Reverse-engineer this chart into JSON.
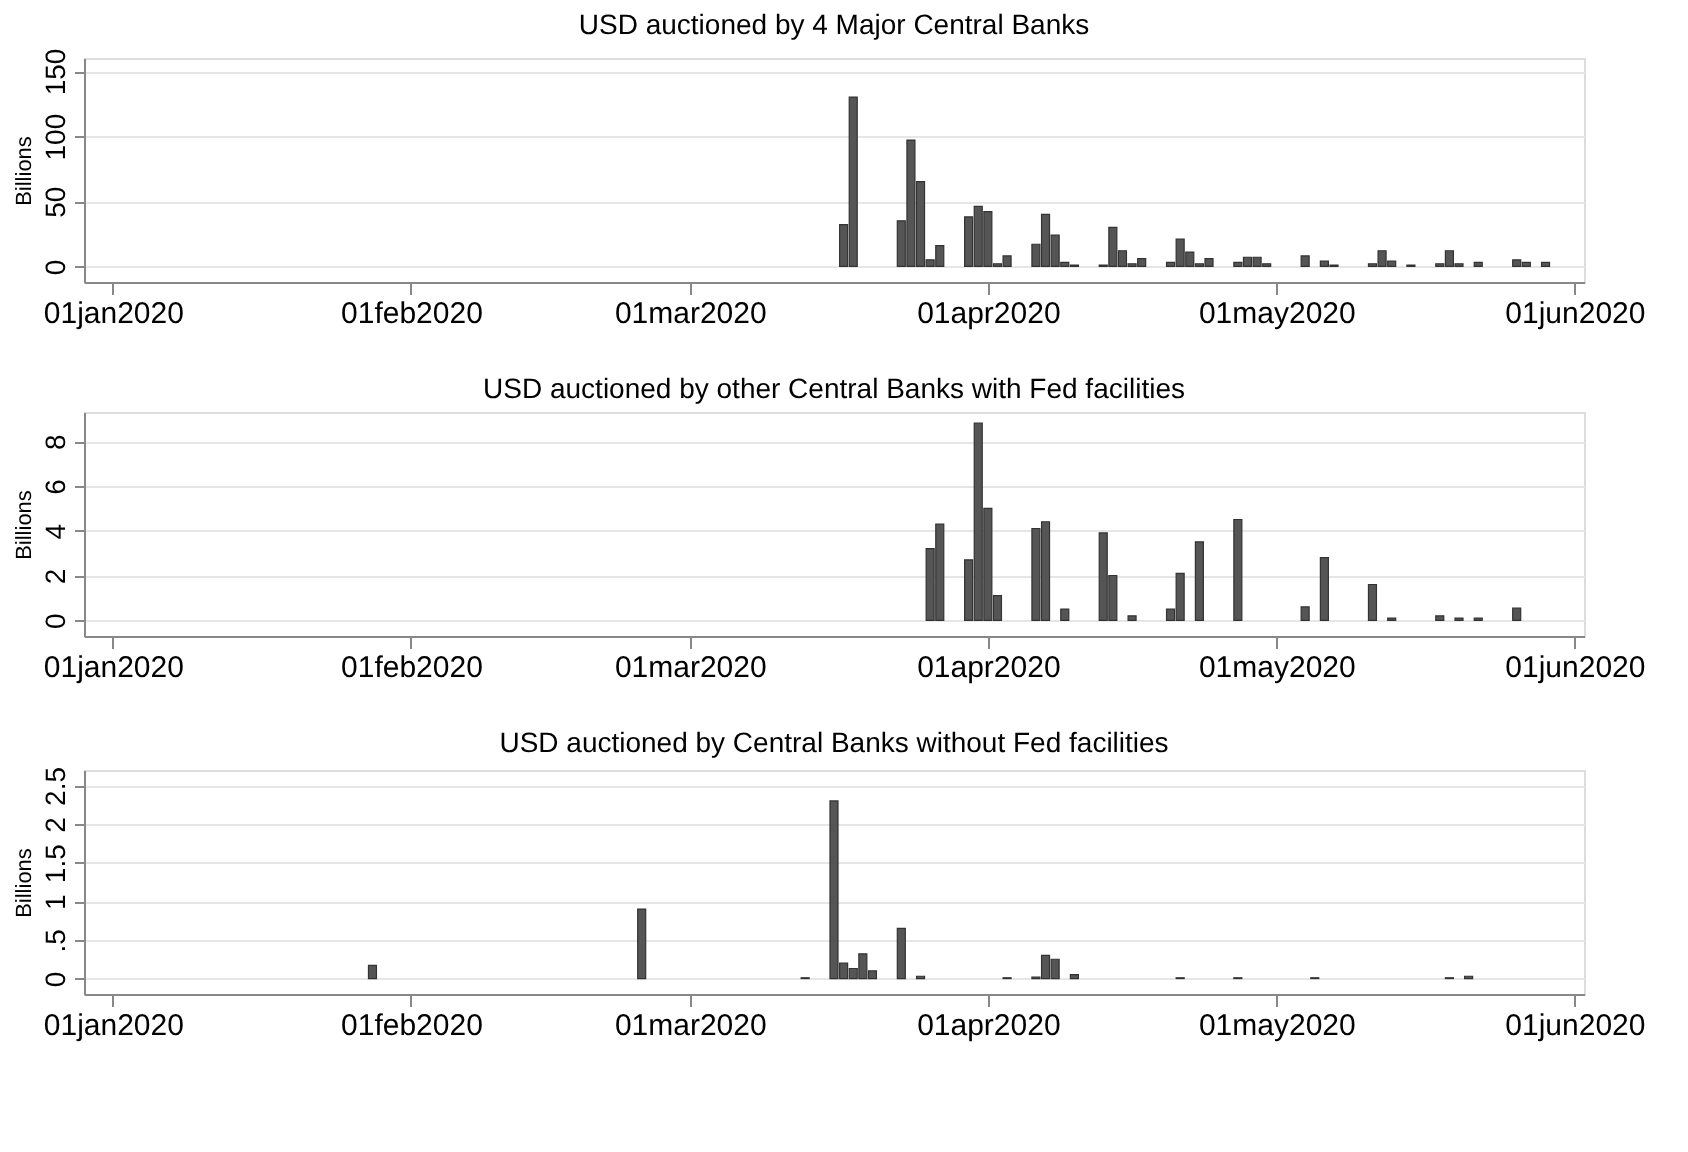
{
  "chart_data": [
    {
      "type": "bar",
      "title": "USD auctioned by 4 Major Central Banks",
      "ylabel": "Billions",
      "x": [
        "2020-03-17",
        "2020-03-18",
        "2020-03-23",
        "2020-03-24",
        "2020-03-25",
        "2020-03-26",
        "2020-03-27",
        "2020-03-30",
        "2020-03-31",
        "2020-04-01",
        "2020-04-02",
        "2020-04-03",
        "2020-04-06",
        "2020-04-07",
        "2020-04-08",
        "2020-04-09",
        "2020-04-10",
        "2020-04-13",
        "2020-04-14",
        "2020-04-15",
        "2020-04-16",
        "2020-04-17",
        "2020-04-20",
        "2020-04-21",
        "2020-04-22",
        "2020-04-23",
        "2020-04-24",
        "2020-04-27",
        "2020-04-28",
        "2020-04-29",
        "2020-04-30",
        "2020-05-04",
        "2020-05-06",
        "2020-05-07",
        "2020-05-11",
        "2020-05-12",
        "2020-05-13",
        "2020-05-15",
        "2020-05-18",
        "2020-05-19",
        "2020-05-20",
        "2020-05-22",
        "2020-05-26",
        "2020-05-27",
        "2020-05-29"
      ],
      "values": [
        32,
        130,
        35,
        97,
        65,
        5,
        16,
        38,
        46,
        42,
        2,
        8,
        17,
        40,
        24,
        3,
        1,
        1,
        30,
        12,
        2,
        6,
        3,
        21,
        11,
        2,
        6,
        3,
        7,
        7,
        2,
        8,
        4,
        1,
        2,
        12,
        4,
        1,
        2,
        12,
        2,
        3,
        5,
        3,
        3
      ],
      "color": "#555555",
      "xlim": [
        "2019-12-29",
        "2020-06-02"
      ],
      "xticks": [
        {
          "value": "2020-01-01",
          "label": "01jan2020"
        },
        {
          "value": "2020-02-01",
          "label": "01feb2020"
        },
        {
          "value": "2020-03-01",
          "label": "01mar2020"
        },
        {
          "value": "2020-04-01",
          "label": "01apr2020"
        },
        {
          "value": "2020-05-01",
          "label": "01may2020"
        },
        {
          "value": "2020-06-01",
          "label": "01jun2020"
        }
      ],
      "ylim": [
        -12,
        160
      ],
      "yticks": [
        0,
        50,
        100,
        150
      ],
      "grid": "y"
    },
    {
      "type": "bar",
      "title": "USD auctioned by other Central Banks with Fed facilities",
      "ylabel": "Billions",
      "x": [
        "2020-03-26",
        "2020-03-27",
        "2020-03-30",
        "2020-03-31",
        "2020-04-01",
        "2020-04-02",
        "2020-04-06",
        "2020-04-07",
        "2020-04-09",
        "2020-04-13",
        "2020-04-14",
        "2020-04-16",
        "2020-04-20",
        "2020-04-21",
        "2020-04-23",
        "2020-04-27",
        "2020-05-04",
        "2020-05-06",
        "2020-05-11",
        "2020-05-13",
        "2020-05-18",
        "2020-05-20",
        "2020-05-22",
        "2020-05-26"
      ],
      "values": [
        3.2,
        4.3,
        2.7,
        8.8,
        5.0,
        1.1,
        4.1,
        4.4,
        0.5,
        3.9,
        2.0,
        0.2,
        0.5,
        2.1,
        3.5,
        4.5,
        0.6,
        2.8,
        1.6,
        0.1,
        0.2,
        0.1,
        0.1,
        0.55
      ],
      "color": "#555555",
      "xlim": [
        "2019-12-29",
        "2020-06-02"
      ],
      "xticks": [
        {
          "value": "2020-01-01",
          "label": "01jan2020"
        },
        {
          "value": "2020-02-01",
          "label": "01feb2020"
        },
        {
          "value": "2020-03-01",
          "label": "01mar2020"
        },
        {
          "value": "2020-04-01",
          "label": "01apr2020"
        },
        {
          "value": "2020-05-01",
          "label": "01may2020"
        },
        {
          "value": "2020-06-01",
          "label": "01jun2020"
        }
      ],
      "ylim": [
        -0.7,
        9.3
      ],
      "yticks": [
        0,
        2,
        4,
        6,
        8
      ],
      "grid": "y"
    },
    {
      "type": "bar",
      "title": "USD auctioned by Central Banks without Fed facilities",
      "ylabel": "Billions",
      "x": [
        "2020-01-28",
        "2020-02-25",
        "2020-03-13",
        "2020-03-16",
        "2020-03-17",
        "2020-03-18",
        "2020-03-19",
        "2020-03-20",
        "2020-03-23",
        "2020-03-25",
        "2020-04-03",
        "2020-04-06",
        "2020-04-07",
        "2020-04-08",
        "2020-04-10",
        "2020-04-21",
        "2020-04-27",
        "2020-05-05",
        "2020-05-19",
        "2020-05-21"
      ],
      "values": [
        0.17,
        0.9,
        0.01,
        2.3,
        0.2,
        0.13,
        0.32,
        0.1,
        0.65,
        0.03,
        0.01,
        0.02,
        0.3,
        0.25,
        0.05,
        0.01,
        0.01,
        0.01,
        0.01,
        0.03
      ],
      "color": "#555555",
      "xlim": [
        "2019-12-29",
        "2020-06-02"
      ],
      "xticks": [
        {
          "value": "2020-01-01",
          "label": "01jan2020"
        },
        {
          "value": "2020-02-01",
          "label": "01feb2020"
        },
        {
          "value": "2020-03-01",
          "label": "01mar2020"
        },
        {
          "value": "2020-04-01",
          "label": "01apr2020"
        },
        {
          "value": "2020-05-01",
          "label": "01may2020"
        },
        {
          "value": "2020-06-01",
          "label": "01jun2020"
        }
      ],
      "ylim": [
        -0.2,
        2.7
      ],
      "yticks": [
        0,
        {
          "value": 0.5,
          "label": ".5"
        },
        1,
        1.5,
        2,
        2.5
      ],
      "grid": "y"
    }
  ]
}
